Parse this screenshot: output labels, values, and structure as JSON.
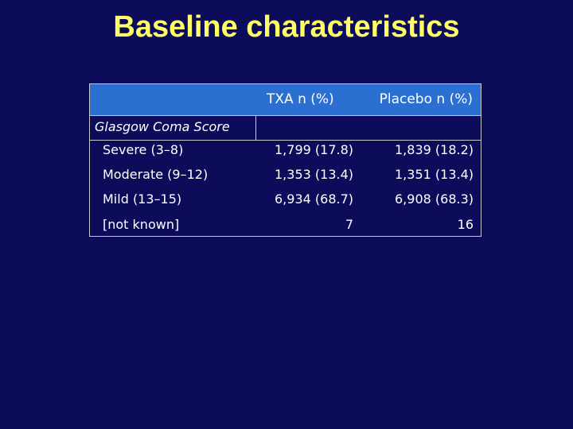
{
  "slide": {
    "title": "Baseline characteristics"
  },
  "table": {
    "columns": [
      "TXA n (%)",
      "Placebo n (%)"
    ],
    "section_label": "Glasgow Coma Score",
    "rows": [
      {
        "label": "Severe (3–8)",
        "txa": "1,799 (17.8)",
        "placebo": "1,839 (18.2)"
      },
      {
        "label": "Moderate (9–12)",
        "txa": "1,353 (13.4)",
        "placebo": "1,351 (13.4)"
      },
      {
        "label": "Mild (13–15)",
        "txa": "6,934 (68.7)",
        "placebo": "6,908 (68.3)"
      },
      {
        "label": "[not known]",
        "txa": "7",
        "placebo": "16"
      }
    ]
  },
  "colors": {
    "background": "#0c0c5a",
    "title": "#ffff66",
    "header_band": "#2b6fd1",
    "text": "#ffffff"
  }
}
